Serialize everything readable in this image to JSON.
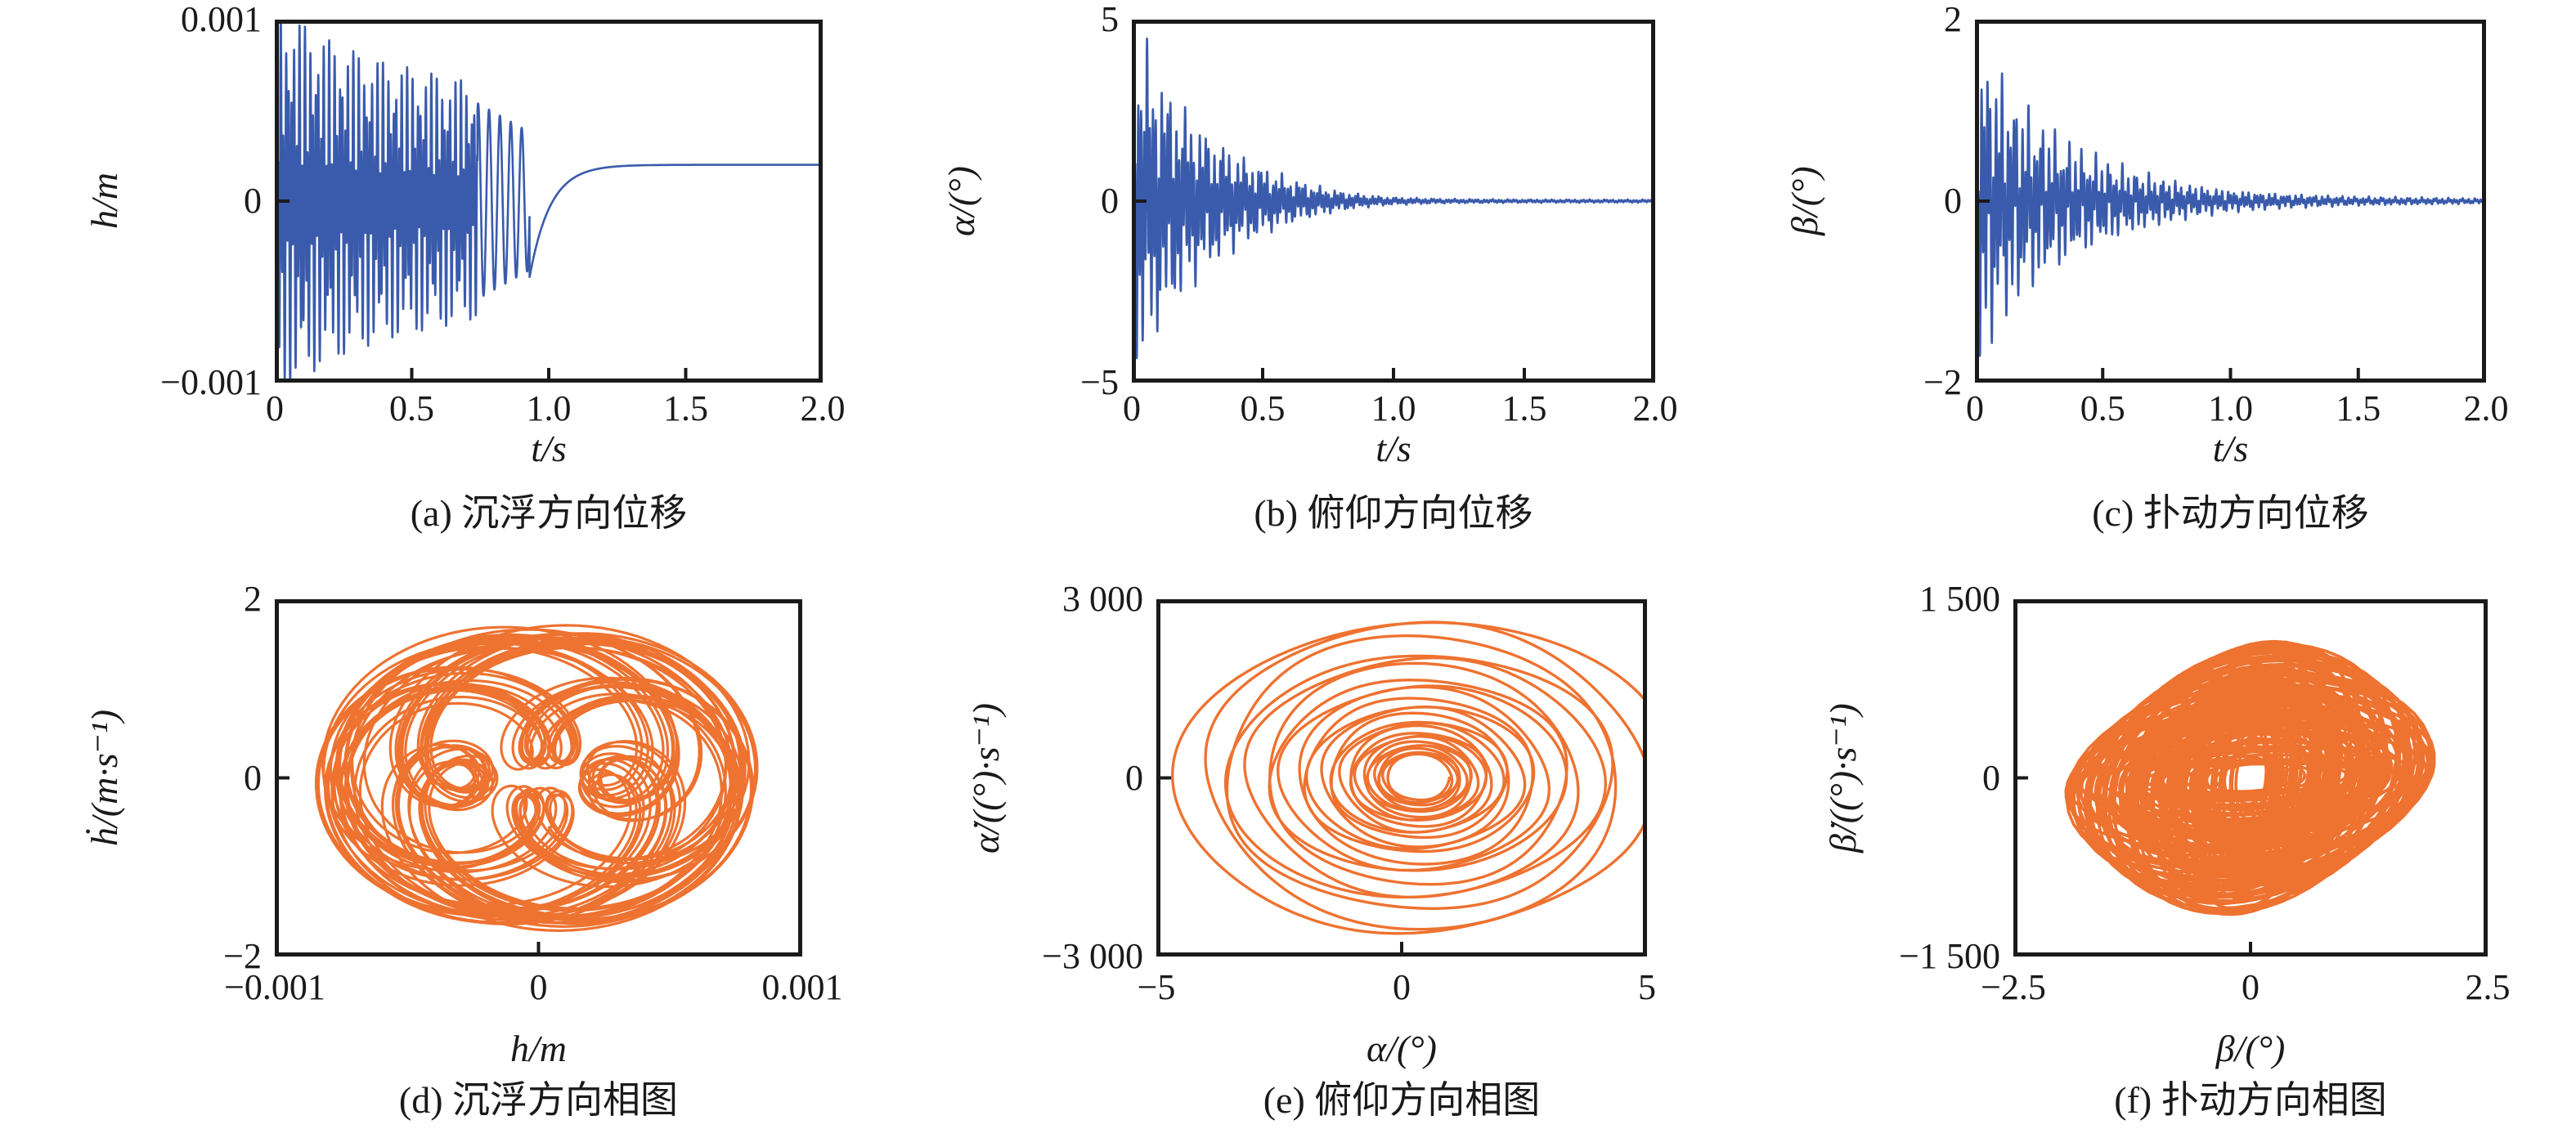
{
  "page": {
    "background": "#ffffff"
  },
  "colors": {
    "series_blue": "#3A5BAC",
    "series_orange": "#EE7230",
    "axis": "#1a1a1a",
    "text": "#1a1a1a"
  },
  "chart_data": [
    {
      "panel": "a",
      "type": "line",
      "kind": "time_series",
      "caption": "(a) 沉浮方向位移",
      "xlabel": "t/s",
      "ylabel": "h/m",
      "xlim": [
        0,
        2.0
      ],
      "ylim": [
        -0.001,
        0.001
      ],
      "xtick_values": [
        0,
        0.5,
        1.0,
        1.5,
        2.0
      ],
      "xtick_labels": [
        "0",
        "0.5",
        "1.0",
        "1.5",
        "2.0"
      ],
      "ytick_values": [
        0.001,
        0,
        -0.001
      ],
      "ytick_labels": [
        "0.001",
        "0",
        "−0.001"
      ],
      "color": "#3A5BAC",
      "stroke_width": 2.6,
      "grid": false,
      "data_summary": {
        "initial_peak_m": 0.0009,
        "dense_oscillation_until_s": 0.74,
        "slow_cycles_until_s": 0.93,
        "transition_dip_m": -0.00042,
        "steady_state_m": 0.0002,
        "settled_by_s": 1.2
      },
      "signal": {
        "generator": "heave",
        "samples": 4500,
        "gain": 1.2,
        "phase1_end": 0.74,
        "phase2_end": 0.93,
        "envelope": [
          [
            0,
            0.0009
          ],
          [
            0.1,
            0.00082
          ],
          [
            0.2,
            0.00074
          ],
          [
            0.35,
            0.00066
          ],
          [
            0.5,
            0.00061
          ],
          [
            0.65,
            0.00057
          ],
          [
            0.74,
            0.00054
          ]
        ],
        "carriers": [
          [
            0.6,
            640,
            0.2
          ],
          [
            0.4,
            287,
            1.1
          ]
        ],
        "slow_wave": {
          "freq": 158,
          "phase": 1.2,
          "env_start": 0.00054,
          "env_end": 0.00038
        },
        "settle": {
          "steady": 0.0002,
          "dip_depth": 0.00062,
          "tau": 0.075
        }
      }
    },
    {
      "panel": "b",
      "type": "line",
      "kind": "time_series",
      "caption": "(b) 俯仰方向位移",
      "xlabel": "t/s",
      "ylabel": "α/(°)",
      "xlim": [
        0,
        2.0
      ],
      "ylim": [
        -5,
        5
      ],
      "xtick_values": [
        0,
        0.5,
        1.0,
        1.5,
        2.0
      ],
      "xtick_labels": [
        "0",
        "0.5",
        "1.0",
        "1.5",
        "2.0"
      ],
      "ytick_values": [
        5,
        0,
        -5
      ],
      "ytick_labels": [
        "5",
        "0",
        "−5"
      ],
      "color": "#3A5BAC",
      "stroke_width": 2.6,
      "grid": false,
      "data_summary": {
        "initial_peak_deg": 4.9,
        "decay": "exponential ring-down",
        "near_zero_by_s": 0.9,
        "residual_deg": 0.05
      },
      "signal": {
        "generator": "ringdown",
        "samples": 4500,
        "gain": 1.05,
        "envelope": [
          [
            0,
            4.8
          ],
          [
            0.05,
            4.4
          ],
          [
            0.1,
            3.7
          ],
          [
            0.15,
            3.1
          ],
          [
            0.2,
            2.6
          ],
          [
            0.3,
            1.85
          ],
          [
            0.4,
            1.33
          ],
          [
            0.5,
            0.97
          ],
          [
            0.6,
            0.66
          ],
          [
            0.7,
            0.44
          ],
          [
            0.8,
            0.28
          ],
          [
            0.9,
            0.17
          ],
          [
            1.0,
            0.11
          ],
          [
            1.2,
            0.065
          ],
          [
            1.5,
            0.05
          ],
          [
            2.0,
            0.045
          ]
        ],
        "carriers": [
          [
            0.56,
            561,
            0.3
          ],
          [
            0.28,
            219,
            1.4
          ],
          [
            0.16,
            86,
            2.6
          ]
        ]
      }
    },
    {
      "panel": "c",
      "type": "line",
      "kind": "time_series",
      "caption": "(c) 扑动方向位移",
      "xlabel": "t/s",
      "ylabel": "β/(°)",
      "xlim": [
        0,
        2.0
      ],
      "ylim": [
        -2,
        2
      ],
      "xtick_values": [
        0,
        0.5,
        1.0,
        1.5,
        2.0
      ],
      "xtick_labels": [
        "0",
        "0.5",
        "1.0",
        "1.5",
        "2.0"
      ],
      "ytick_values": [
        2,
        0,
        -2
      ],
      "ytick_labels": [
        "2",
        "0",
        "−2"
      ],
      "color": "#3A5BAC",
      "stroke_width": 2.6,
      "grid": false,
      "data_summary": {
        "initial_peak_deg": 2.0,
        "decay": "exponential ring-down, slightly slower than pitch",
        "near_zero_by_s": 1.0,
        "residual_deg": 0.03
      },
      "signal": {
        "generator": "ringdown",
        "samples": 4500,
        "gain": 1.1,
        "envelope": [
          [
            0,
            1.98
          ],
          [
            0.05,
            1.62
          ],
          [
            0.1,
            1.38
          ],
          [
            0.2,
            1.02
          ],
          [
            0.3,
            0.78
          ],
          [
            0.4,
            0.6
          ],
          [
            0.5,
            0.47
          ],
          [
            0.6,
            0.36
          ],
          [
            0.7,
            0.28
          ],
          [
            0.8,
            0.21
          ],
          [
            0.9,
            0.16
          ],
          [
            1.0,
            0.12
          ],
          [
            1.2,
            0.08
          ],
          [
            1.5,
            0.05
          ],
          [
            2.0,
            0.03
          ]
        ],
        "carriers": [
          [
            0.5,
            547,
            0.1
          ],
          [
            0.32,
            241,
            1.0
          ],
          [
            0.18,
            118,
            2.4
          ]
        ]
      }
    },
    {
      "panel": "d",
      "type": "line",
      "kind": "phase_portrait",
      "caption": "(d) 沉浮方向相图",
      "xlabel": "h/m",
      "ylabel": "ḣ/(m·s⁻¹)",
      "xlim": [
        -0.001,
        0.001
      ],
      "ylim": [
        -2,
        2
      ],
      "xtick_values": [
        -0.001,
        0,
        0.001
      ],
      "xtick_labels": [
        "−0.001",
        "0",
        "0.001"
      ],
      "ytick_values": [
        2,
        0,
        -2
      ],
      "ytick_labels": [
        "2",
        "0",
        "−2"
      ],
      "color": "#EE7230",
      "stroke_width": 3.2,
      "grid": false,
      "data_summary": {
        "x_extent": [
          -0.00088,
          0.00088
        ],
        "y_extent": [
          -1.8,
          1.75
        ],
        "structure": "dense quasi-periodic tangle filling a rounded rectangle, pinched at top centre"
      },
      "signal": {
        "generator": "torus",
        "samples": 7000,
        "T": 260,
        "x_terms": [
          [
            0.0005,
            1.0,
            0.0
          ],
          [
            0.0003,
            2.337,
            0.5
          ],
          [
            4e-05,
            0.71,
            1.0
          ]
        ],
        "y_terms": [
          [
            0.9,
            1.0,
            0.0
          ],
          [
            0.74,
            2.337,
            0.5
          ],
          [
            0.05,
            0.71,
            1.0
          ]
        ],
        "mod": [
          0.04,
          0.123
        ]
      }
    },
    {
      "panel": "e",
      "type": "line",
      "kind": "phase_portrait",
      "caption": "(e) 俯仰方向相图",
      "xlabel": "α/(°)",
      "ylabel": "α̇/((°)·s⁻¹)",
      "xlim": [
        -5,
        5
      ],
      "ylim": [
        -3000,
        3000
      ],
      "xtick_values": [
        -5,
        0,
        5
      ],
      "xtick_labels": [
        "−5",
        "0",
        "5"
      ],
      "ytick_values": [
        3000,
        0,
        -3000
      ],
      "ytick_labels": [
        "3 000",
        "0",
        "−3 000"
      ],
      "color": "#EE7230",
      "stroke_width": 3.4,
      "grid": false,
      "data_summary": {
        "x_extent": [
          -4.9,
          5.0
        ],
        "y_extent": [
          -2850,
          2450
        ],
        "structure": "inward spiral of ~26 turns converging to a dense focus near (0.3, 0), tail entering from right edge",
        "turns": 26
      },
      "signal": {
        "generator": "spiral",
        "samples": 6000,
        "center_x": 0.35,
        "rx": 4.95,
        "ry": 2780,
        "decay": 0.0125,
        "turns": 26,
        "wobble": [
          0.055,
          2.3,
          0.7
        ],
        "wobble_y": [
          0.05,
          1.7,
          0.0
        ]
      }
    },
    {
      "panel": "f",
      "type": "line",
      "kind": "phase_portrait",
      "caption": "(f) 扑动方向相图",
      "xlabel": "β/(°)",
      "ylabel": "β̇/((°)·s⁻¹)",
      "xlim": [
        -2.5,
        2.5
      ],
      "ylim": [
        -1500,
        1500
      ],
      "xtick_values": [
        -2.5,
        0,
        2.5
      ],
      "xtick_labels": [
        "−2.5",
        "0",
        "2.5"
      ],
      "ytick_values": [
        1500,
        0,
        -1500
      ],
      "ytick_labels": [
        "1 500",
        "0",
        "−1 500"
      ],
      "color": "#EE7230",
      "stroke_width": 3.6,
      "grid": false,
      "data_summary": {
        "x_extent": [
          -2.1,
          2.1
        ],
        "y_extent": [
          -1250,
          1250
        ],
        "structure": "irregular nested loops with tall crescents at the sides and a dense core near the origin"
      },
      "signal": {
        "generator": "loops",
        "samples": 8000,
        "T": 300,
        "theta": [
          3.1,
          0.4,
          0.9
        ],
        "amp_x": {
          "base": 0.5,
          "swing": 0.55,
          "w": 0.21,
          "p": 0.0,
          "a2": 0.35,
          "w2": 0.047,
          "p2": 1.0
        },
        "amp_y": {
          "base": 300,
          "swing": 330,
          "w": 0.21,
          "p": 1.2,
          "a2": 190,
          "w2": 0.059,
          "p2": 0.0
        },
        "y_phase": 0.2
      }
    }
  ]
}
